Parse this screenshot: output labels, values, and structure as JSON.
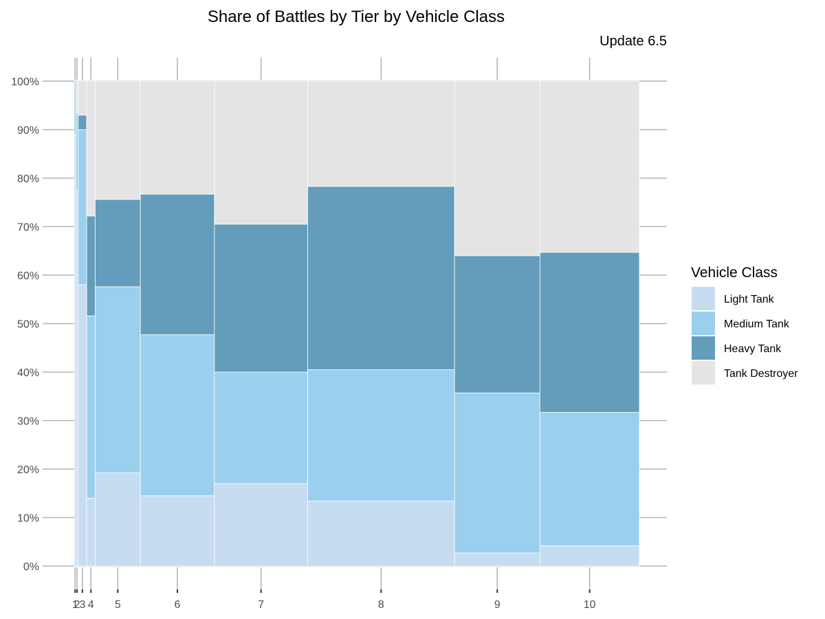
{
  "chart_data": {
    "type": "mosaic",
    "title": "Share of Battles by Tier by Vehicle Class",
    "subtitle": "Update 6.5",
    "xlabel": "",
    "ylabel": "",
    "ylim": [
      0,
      100
    ],
    "y_ticks": [
      "0%",
      "10%",
      "20%",
      "30%",
      "40%",
      "50%",
      "60%",
      "70%",
      "80%",
      "90%",
      "100%"
    ],
    "grid": false,
    "legend": {
      "title": "Vehicle Class",
      "position": "right",
      "entries": [
        "Light Tank",
        "Medium Tank",
        "Heavy Tank",
        "Tank Destroyer"
      ]
    },
    "colors": {
      "Light Tank": "#c6dcf1",
      "Medium Tank": "#9bcfee",
      "Heavy Tank": "#639dbb",
      "Tank Destroyer": "#e4e4e4"
    },
    "categories": [
      "1",
      "2",
      "3",
      "4",
      "5",
      "6",
      "7",
      "8",
      "9",
      "10"
    ],
    "column_share_percent": [
      0.3,
      0.4,
      1.5,
      1.5,
      8.0,
      13.1,
      16.5,
      26.0,
      15.1,
      17.6
    ],
    "series": [
      {
        "name": "Light Tank",
        "values": [
          89.0,
          77.5,
          58.0,
          14.0,
          19.2,
          14.5,
          17.0,
          13.4,
          2.7,
          4.2
        ]
      },
      {
        "name": "Medium Tank",
        "values": [
          11.0,
          16.0,
          32.0,
          37.6,
          38.4,
          33.2,
          23.0,
          27.1,
          33.0,
          27.5
        ]
      },
      {
        "name": "Heavy Tank",
        "values": [
          0.0,
          0.0,
          3.0,
          20.6,
          18.0,
          29.0,
          30.5,
          37.8,
          28.3,
          33.0
        ]
      },
      {
        "name": "Tank Destroyer",
        "values": [
          0.0,
          6.5,
          7.0,
          27.8,
          24.4,
          23.3,
          29.5,
          21.7,
          36.0,
          35.3
        ]
      }
    ]
  }
}
